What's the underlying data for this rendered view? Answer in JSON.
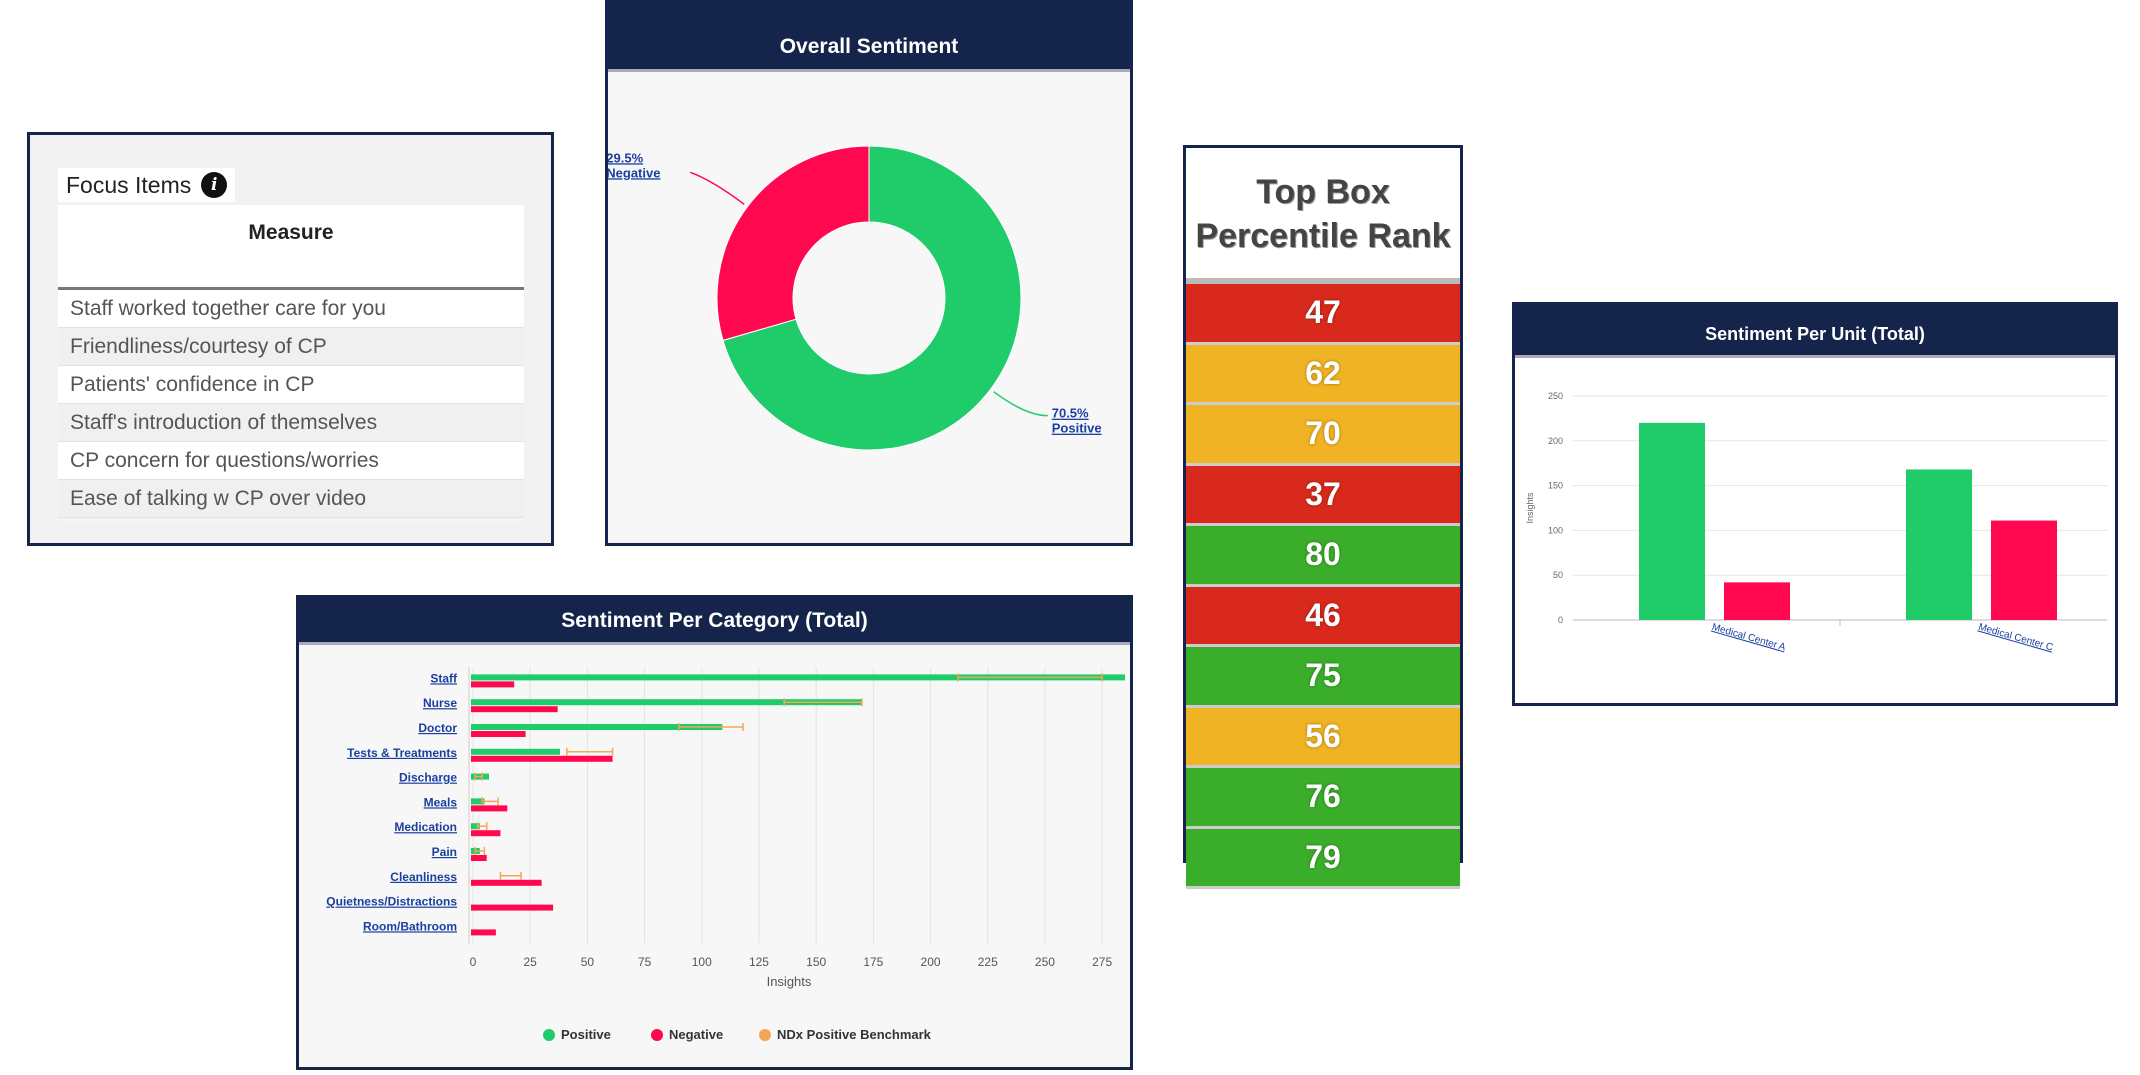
{
  "focus_items": {
    "title": "Focus Items",
    "info_icon": "info-icon",
    "column_header": "Measure",
    "rows": [
      "Staff worked together care for you",
      "Friendliness/courtesy of CP",
      "Patients' confidence in CP",
      "Staff's introduction of themselves",
      "CP concern for questions/worries",
      "Ease of talking w CP over video"
    ]
  },
  "top_box": {
    "title_line1": "Top Box",
    "title_line2": "Percentile Rank",
    "colors": {
      "red": "#d9291c",
      "yellow": "#f0b323",
      "green": "#3aae2a"
    },
    "ranks": [
      {
        "value": "47",
        "color": "red"
      },
      {
        "value": "62",
        "color": "yellow"
      },
      {
        "value": "70",
        "color": "yellow"
      },
      {
        "value": "37",
        "color": "red"
      },
      {
        "value": "80",
        "color": "green"
      },
      {
        "value": "46",
        "color": "red"
      },
      {
        "value": "75",
        "color": "green"
      },
      {
        "value": "56",
        "color": "yellow"
      },
      {
        "value": "76",
        "color": "green"
      },
      {
        "value": "79",
        "color": "green"
      }
    ]
  },
  "colors": {
    "positive": "#20cc6a",
    "negative": "#ff0850",
    "benchmark": "#f5a556",
    "header": "#15244a"
  },
  "chart_data": [
    {
      "type": "pie",
      "title": "Overall Sentiment",
      "donut": true,
      "slices": [
        {
          "label": "Positive",
          "value": 70.5,
          "display": "70.5%"
        },
        {
          "label": "Negative",
          "value": 29.5,
          "display": "29.5%"
        }
      ]
    },
    {
      "type": "bar",
      "title": "Sentiment Per Unit (Total)",
      "ylabel": "Insights",
      "ylim": [
        0,
        250
      ],
      "yticks": [
        "0",
        "50",
        "100",
        "150",
        "200",
        "250"
      ],
      "categories": [
        "Medical Center A",
        "Medical Center C"
      ],
      "series": [
        {
          "name": "Positive",
          "values": [
            220,
            168
          ]
        },
        {
          "name": "Negative",
          "values": [
            42,
            111
          ]
        }
      ]
    },
    {
      "type": "bar",
      "orientation": "horizontal",
      "title": "Sentiment Per Category (Total)",
      "xlabel": "Insights",
      "xlim": [
        0,
        285
      ],
      "xticks": [
        "0",
        "25",
        "50",
        "75",
        "100",
        "125",
        "150",
        "175",
        "200",
        "225",
        "250",
        "275"
      ],
      "categories": [
        "Staff",
        "Nurse",
        "Doctor",
        "Tests & Treatments",
        "Discharge",
        "Meals",
        "Medication",
        "Pain",
        "Cleanliness",
        "Quietness/Distractions",
        "Room/Bathroom"
      ],
      "series": [
        {
          "name": "Positive",
          "values": [
            285,
            170,
            109,
            38,
            7,
            5,
            3,
            3,
            0,
            0,
            0
          ]
        },
        {
          "name": "Negative",
          "values": [
            18,
            37,
            23,
            61,
            0,
            15,
            12,
            6,
            30,
            35,
            10
          ]
        }
      ],
      "benchmark": {
        "name": "NDx Positive Benchmark",
        "ranges": [
          [
            212,
            275
          ],
          [
            136,
            170
          ],
          [
            90,
            118
          ],
          [
            41,
            61
          ],
          [
            1,
            4
          ],
          [
            4,
            11
          ],
          [
            2,
            6
          ],
          [
            1,
            5
          ],
          [
            12,
            21
          ],
          null,
          null
        ]
      },
      "legend": {
        "position": "bottom",
        "items": [
          "Positive",
          "Negative",
          "NDx Positive Benchmark"
        ]
      }
    }
  ]
}
